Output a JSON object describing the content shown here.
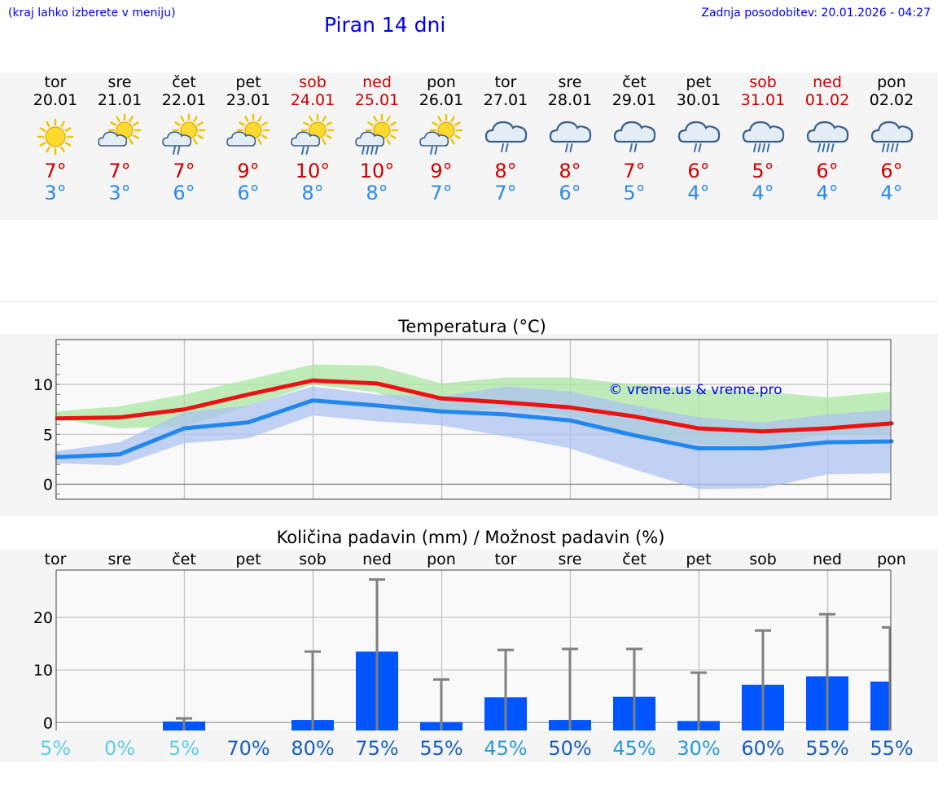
{
  "header": {
    "hint": "(kraj lahko izberete v meniju)",
    "title": "Piran 14 dni",
    "updated": "Zadnja posodobitev: 20.01.2026 - 04:27"
  },
  "days": [
    {
      "name": "tor",
      "date": "20.01",
      "weekend": false,
      "icon": "sun-icon",
      "tmax": "7°",
      "tmin": "3°"
    },
    {
      "name": "sre",
      "date": "21.01",
      "weekend": false,
      "icon": "sun-cloud-icon",
      "tmax": "7°",
      "tmin": "3°"
    },
    {
      "name": "čet",
      "date": "22.01",
      "weekend": false,
      "icon": "sun-cloud-rain-icon",
      "tmax": "7°",
      "tmin": "6°"
    },
    {
      "name": "pet",
      "date": "23.01",
      "weekend": false,
      "icon": "sun-cloud-icon",
      "tmax": "9°",
      "tmin": "6°"
    },
    {
      "name": "sob",
      "date": "24.01",
      "weekend": true,
      "icon": "sun-cloud-rain-icon",
      "tmax": "10°",
      "tmin": "8°"
    },
    {
      "name": "ned",
      "date": "25.01",
      "weekend": true,
      "icon": "sun-cloud-heavy-rain-icon",
      "tmax": "10°",
      "tmin": "8°"
    },
    {
      "name": "pon",
      "date": "26.01",
      "weekend": false,
      "icon": "sun-cloud-rain-icon",
      "tmax": "9°",
      "tmin": "7°"
    },
    {
      "name": "tor",
      "date": "27.01",
      "weekend": false,
      "icon": "cloud-rain-icon",
      "tmax": "8°",
      "tmin": "7°"
    },
    {
      "name": "sre",
      "date": "28.01",
      "weekend": false,
      "icon": "cloud-rain-icon",
      "tmax": "8°",
      "tmin": "6°"
    },
    {
      "name": "čet",
      "date": "29.01",
      "weekend": false,
      "icon": "cloud-rain-icon",
      "tmax": "7°",
      "tmin": "5°"
    },
    {
      "name": "pet",
      "date": "30.01",
      "weekend": false,
      "icon": "cloud-rain-icon",
      "tmax": "6°",
      "tmin": "4°"
    },
    {
      "name": "sob",
      "date": "31.01",
      "weekend": true,
      "icon": "cloud-heavy-rain-icon",
      "tmax": "5°",
      "tmin": "4°"
    },
    {
      "name": "ned",
      "date": "01.02",
      "weekend": true,
      "icon": "cloud-heavy-rain-icon",
      "tmax": "6°",
      "tmin": "4°"
    },
    {
      "name": "pon",
      "date": "02.02",
      "weekend": false,
      "icon": "cloud-heavy-rain-icon",
      "tmax": "6°",
      "tmin": "4°"
    }
  ],
  "colors": {
    "max_line": "#ee1111",
    "min_line": "#2288ee",
    "max_band": "#a8e6a0",
    "min_band": "#a9c2f2",
    "bar": "#0055ff",
    "whisker": "#808080"
  },
  "chart_data": [
    {
      "type": "line",
      "title": "Temperatura (°C)",
      "watermark": "© vreme.us & vreme.pro",
      "x": [
        0,
        1,
        2,
        3,
        4,
        5,
        6,
        7,
        8,
        9,
        10,
        11,
        12,
        13
      ],
      "ylim": [
        -1.5,
        14.5
      ],
      "yticks": [
        0,
        5,
        10
      ],
      "series": [
        {
          "name": "max",
          "values": [
            6.6,
            6.7,
            7.5,
            9.0,
            10.4,
            10.1,
            8.6,
            8.2,
            7.7,
            6.8,
            5.6,
            5.3,
            5.6,
            6.1
          ]
        },
        {
          "name": "min",
          "values": [
            2.7,
            3.0,
            5.6,
            6.2,
            8.4,
            7.9,
            7.3,
            7.0,
            6.4,
            4.9,
            3.6,
            3.6,
            4.2,
            4.3
          ]
        }
      ],
      "max_band": {
        "low": [
          6.6,
          5.6,
          5.8,
          7.8,
          10.0,
          9.2,
          7.0,
          7.7,
          6.8,
          5.0,
          4.0,
          3.8,
          5.0,
          5.0
        ],
        "high": [
          7.3,
          7.8,
          9.0,
          10.5,
          12.0,
          11.9,
          10.1,
          10.7,
          10.7,
          10.0,
          9.5,
          9.3,
          8.7,
          9.3
        ]
      },
      "min_band": {
        "low": [
          2.1,
          1.9,
          4.1,
          4.6,
          6.9,
          6.3,
          5.9,
          4.8,
          3.6,
          1.5,
          -0.5,
          -0.4,
          1.0,
          1.1
        ],
        "high": [
          3.3,
          4.2,
          7.2,
          7.9,
          9.8,
          9.0,
          8.8,
          9.8,
          9.3,
          7.9,
          6.7,
          6.2,
          7.0,
          7.5
        ]
      }
    },
    {
      "type": "bar",
      "title": "Količina padavin (mm) / Možnost padavin (%)",
      "categories": [
        "tor",
        "sre",
        "čet",
        "pet",
        "sob",
        "ned",
        "pon",
        "tor",
        "sre",
        "čet",
        "pet",
        "sob",
        "ned",
        "pon"
      ],
      "values": [
        0,
        0,
        0.2,
        0,
        0.5,
        13.5,
        0.1,
        4.8,
        0.5,
        4.9,
        0.3,
        7.2,
        8.8,
        7.8
      ],
      "err_high": [
        0,
        0,
        0.8,
        0,
        13.5,
        27.2,
        8.2,
        13.8,
        14.0,
        14.0,
        9.5,
        17.5,
        20.6,
        18.1
      ],
      "chance": [
        "5%",
        "0%",
        "5%",
        "70%",
        "80%",
        "75%",
        "55%",
        "45%",
        "50%",
        "45%",
        "30%",
        "60%",
        "55%",
        "55%"
      ],
      "chance_values": [
        5,
        0,
        5,
        70,
        80,
        75,
        55,
        45,
        50,
        45,
        30,
        60,
        55,
        55
      ],
      "ylim": [
        -1.5,
        29
      ],
      "yticks": [
        0,
        10,
        20
      ]
    }
  ]
}
